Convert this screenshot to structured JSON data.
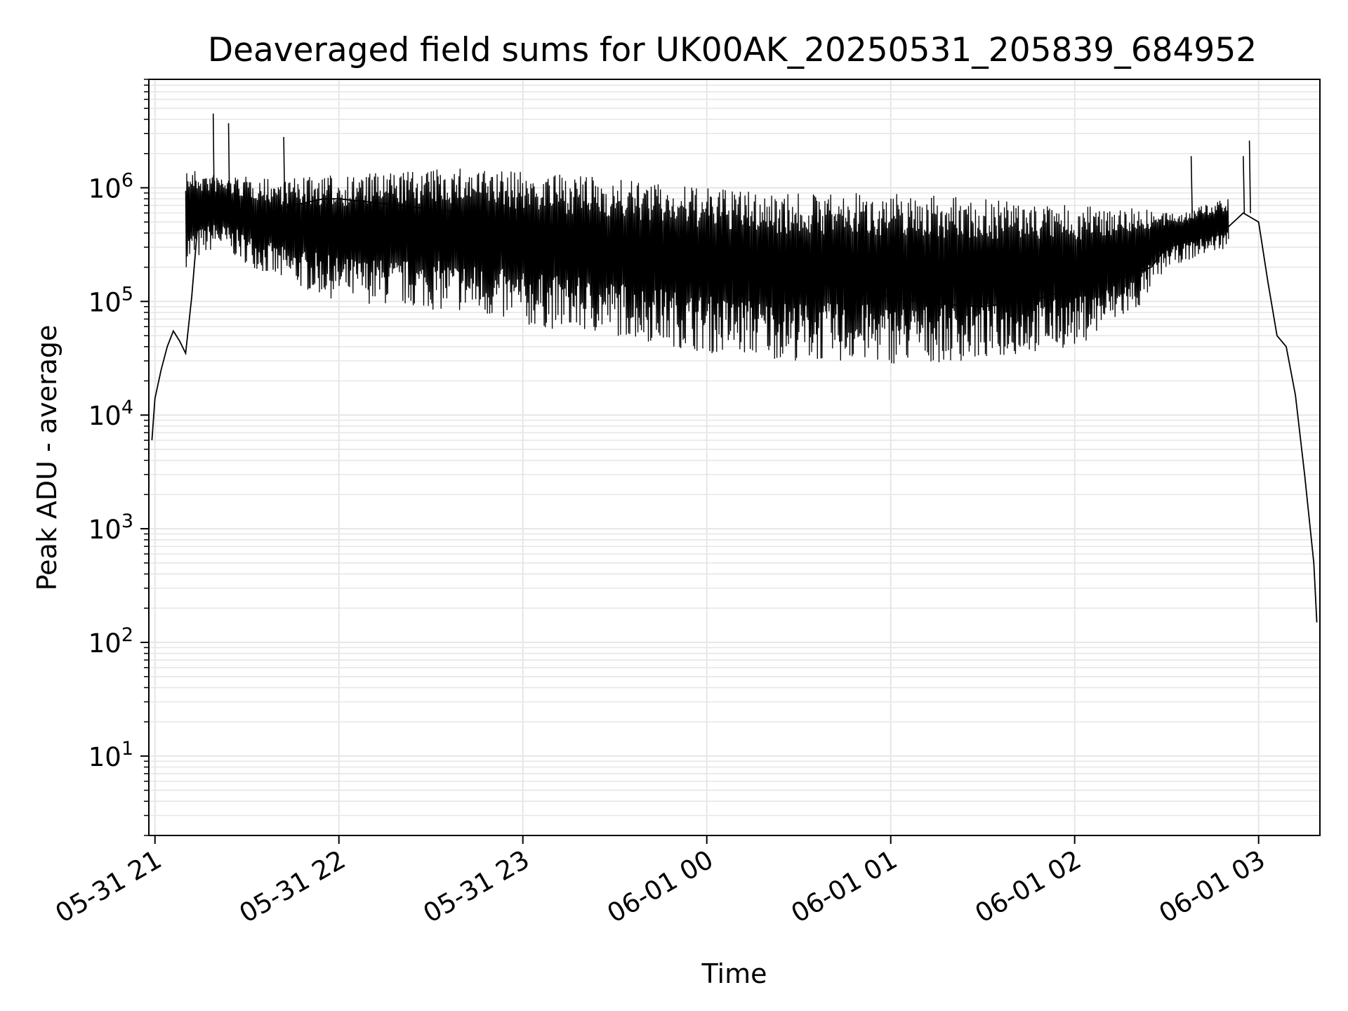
{
  "chart_data": {
    "type": "line",
    "title": "Deaveraged field sums for UK00AK_20250531_205839_684952",
    "xlabel": "Time",
    "ylabel": "Peak ADU - average",
    "yscale": "log",
    "ylim": [
      2,
      9000000
    ],
    "xlim": [
      "2025-05-31 20:58",
      "2025-06-01 03:20"
    ],
    "grid": "on",
    "x_ticks": [
      {
        "label": "05-31 21",
        "value": "2025-05-31 21:00"
      },
      {
        "label": "05-31 22",
        "value": "2025-05-31 22:00"
      },
      {
        "label": "05-31 23",
        "value": "2025-05-31 23:00"
      },
      {
        "label": "06-01 00",
        "value": "2025-06-01 00:00"
      },
      {
        "label": "06-01 01",
        "value": "2025-06-01 01:00"
      },
      {
        "label": "06-01 02",
        "value": "2025-06-01 02:00"
      },
      {
        "label": "06-01 03",
        "value": "2025-06-01 03:00"
      }
    ],
    "y_ticks": [
      {
        "base": "10",
        "exp": "1",
        "value": 10
      },
      {
        "base": "10",
        "exp": "2",
        "value": 100
      },
      {
        "base": "10",
        "exp": "3",
        "value": 1000
      },
      {
        "base": "10",
        "exp": "4",
        "value": 10000
      },
      {
        "base": "10",
        "exp": "5",
        "value": 100000
      },
      {
        "base": "10",
        "exp": "6",
        "value": 1000000
      }
    ],
    "series": [
      {
        "color": "#000000",
        "x": [
          "2025-05-31 20:59",
          "2025-05-31 21:00",
          "2025-05-31 21:02",
          "2025-05-31 21:04",
          "2025-05-31 21:06",
          "2025-05-31 21:08",
          "2025-05-31 21:10",
          "2025-05-31 21:12",
          "2025-05-31 21:14",
          "2025-05-31 21:16",
          "2025-05-31 21:18",
          "2025-05-31 21:20",
          "2025-05-31 21:25",
          "2025-05-31 21:30",
          "2025-05-31 21:35",
          "2025-05-31 21:40",
          "2025-05-31 21:45",
          "2025-05-31 21:50",
          "2025-05-31 21:55",
          "2025-05-31 22:00",
          "2025-05-31 22:10",
          "2025-05-31 22:20",
          "2025-05-31 22:30",
          "2025-05-31 22:40",
          "2025-05-31 22:50",
          "2025-05-31 23:00",
          "2025-05-31 23:15",
          "2025-05-31 23:30",
          "2025-05-31 23:45",
          "2025-06-01 00:00",
          "2025-06-01 00:15",
          "2025-06-01 00:30",
          "2025-06-01 00:45",
          "2025-06-01 01:00",
          "2025-06-01 01:15",
          "2025-06-01 01:30",
          "2025-06-01 01:45",
          "2025-06-01 02:00",
          "2025-06-01 02:15",
          "2025-06-01 02:25",
          "2025-06-01 02:30",
          "2025-06-01 02:40",
          "2025-06-01 02:50",
          "2025-06-01 02:55",
          "2025-06-01 03:00",
          "2025-06-01 03:03",
          "2025-06-01 03:06",
          "2025-06-01 03:09",
          "2025-06-01 03:12",
          "2025-06-01 03:15",
          "2025-06-01 03:18",
          "2025-06-01 03:19"
        ],
        "y": [
          6000,
          14000,
          25000,
          40000,
          55000,
          45000,
          35000,
          110000,
          500000,
          700000,
          650000,
          600000,
          550000,
          500000,
          520000,
          650000,
          700000,
          750000,
          800000,
          800000,
          750000,
          700000,
          650000,
          600000,
          550000,
          500000,
          420000,
          350000,
          300000,
          250000,
          200000,
          160000,
          130000,
          110000,
          95000,
          90000,
          100000,
          130000,
          160000,
          200000,
          300000,
          350000,
          450000,
          600000,
          500000,
          150000,
          50000,
          40000,
          15000,
          3000,
          500,
          150
        ]
      }
    ],
    "y_band": {
      "x": [
        "2025-05-31 21:10",
        "2025-05-31 21:20",
        "2025-05-31 21:40",
        "2025-05-31 22:00",
        "2025-05-31 22:20",
        "2025-05-31 22:40",
        "2025-05-31 23:00",
        "2025-05-31 23:30",
        "2025-06-01 00:00",
        "2025-06-01 00:30",
        "2025-06-01 01:00",
        "2025-06-01 01:30",
        "2025-06-01 02:00",
        "2025-06-01 02:20",
        "2025-06-01 02:30",
        "2025-06-01 02:50"
      ],
      "low": [
        200000,
        300000,
        150000,
        100000,
        90000,
        80000,
        60000,
        50000,
        35000,
        30000,
        28000,
        30000,
        40000,
        80000,
        200000,
        300000
      ],
      "high": [
        1500000,
        1300000,
        1200000,
        1300000,
        1400000,
        1500000,
        1400000,
        1200000,
        1000000,
        900000,
        900000,
        800000,
        700000,
        700000,
        600000,
        800000
      ]
    },
    "peaks": [
      {
        "x": "2025-05-31 21:19",
        "y": 4500000
      },
      {
        "x": "2025-05-31 21:24",
        "y": 3700000
      },
      {
        "x": "2025-05-31 21:42",
        "y": 2800000
      },
      {
        "x": "2025-06-01 02:38",
        "y": 1900000
      },
      {
        "x": "2025-06-01 02:55",
        "y": 1900000
      },
      {
        "x": "2025-06-01 02:57",
        "y": 2600000
      }
    ]
  }
}
